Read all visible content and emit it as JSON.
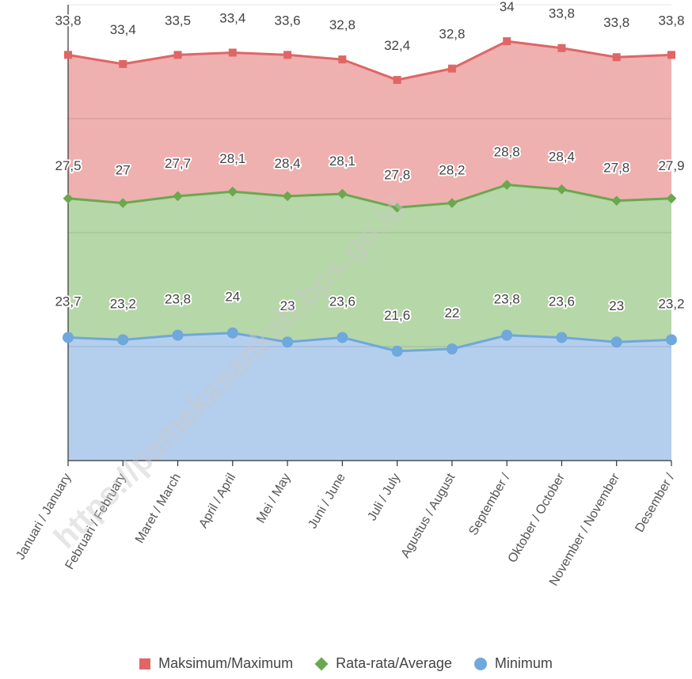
{
  "chart_data": {
    "type": "area",
    "categories": [
      "Januari / January",
      "Februari / February",
      "Maret / March",
      "April / April",
      "Mei / May",
      "Juni / June",
      "Juli / July",
      "Agustus / August",
      "September /",
      "Oktober / October",
      "November / November",
      "Desember /"
    ],
    "series": [
      {
        "name": "Maksimum/Maximum",
        "values": [
          33.8,
          33.4,
          33.5,
          33.4,
          33.6,
          32.8,
          32.4,
          32.8,
          34,
          33.8,
          33.8,
          33.8
        ],
        "plot_values": [
          33.8,
          33.4,
          33.8,
          33.9,
          33.8,
          33.6,
          32.7,
          33.2,
          34.4,
          34.1,
          33.7,
          33.8
        ],
        "color": "#e06666",
        "fill": "#efb0b0",
        "marker": "square"
      },
      {
        "name": "Rata-rata/Average",
        "values": [
          27.5,
          27,
          27.7,
          28.1,
          28.4,
          28.1,
          27.8,
          28.2,
          28.8,
          28.4,
          27.8,
          27.9
        ],
        "plot_values": [
          27.5,
          27.3,
          27.6,
          27.8,
          27.6,
          27.7,
          27.1,
          27.3,
          28.1,
          27.9,
          27.4,
          27.5
        ],
        "color": "#6aa84f",
        "fill": "#b6d7a8",
        "marker": "diamond"
      },
      {
        "name": "Minimum",
        "values": [
          23.7,
          23.2,
          23.8,
          24,
          23,
          23.6,
          21.6,
          22,
          23.8,
          23.6,
          23,
          23.2
        ],
        "plot_values": [
          21.4,
          21.3,
          21.5,
          21.6,
          21.2,
          21.4,
          20.8,
          20.9,
          21.5,
          21.4,
          21.2,
          21.3
        ],
        "color": "#6fa8dc",
        "fill": "#b4cfed",
        "marker": "circle"
      }
    ],
    "ylim": [
      16,
      36
    ],
    "grid": true,
    "legend_position": "bottom",
    "watermark": "https://pamekasankab.bps.go.id"
  }
}
